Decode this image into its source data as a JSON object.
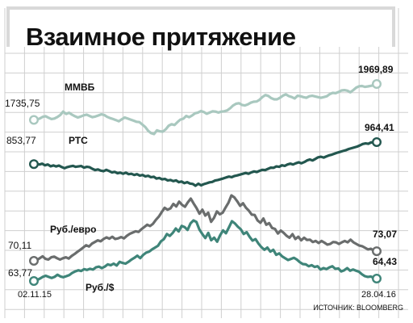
{
  "chart_data": {
    "type": "line",
    "title": "Взаимное притяжение",
    "source": "ИСТОЧНИК: BLOOMBERG",
    "x_start": "02.11.15",
    "x_end": "28.04.16",
    "grid": true,
    "series": [
      {
        "name": "ММВБ",
        "color": "#a9c8bf",
        "start_value": "1735,75",
        "end_value": "1969,89",
        "values": [
          1735.75,
          1738,
          1745,
          1756,
          1760,
          1750,
          1742,
          1745,
          1755,
          1768,
          1790,
          1775,
          1783,
          1770,
          1760,
          1752,
          1758,
          1766,
          1770,
          1762,
          1754,
          1758,
          1765,
          1772,
          1768,
          1756,
          1748,
          1742,
          1735,
          1727,
          1740,
          1752,
          1745,
          1738,
          1731,
          1724,
          1722,
          1706,
          1690,
          1665,
          1650,
          1644,
          1668,
          1662,
          1660,
          1675,
          1698,
          1708,
          1703,
          1722,
          1738,
          1744,
          1762,
          1754,
          1765,
          1779,
          1784,
          1794,
          1787,
          1776,
          1784,
          1792,
          1790,
          1784,
          1790,
          1792,
          1798,
          1812,
          1830,
          1841,
          1845,
          1834,
          1830,
          1837,
          1848,
          1854,
          1856,
          1867,
          1885,
          1898,
          1892,
          1878,
          1870,
          1870,
          1880,
          1894,
          1902,
          1891,
          1885,
          1876,
          1893,
          1890,
          1884,
          1880,
          1890,
          1893,
          1889,
          1884,
          1880,
          1885,
          1890,
          1904,
          1912,
          1910,
          1918,
          1928,
          1930,
          1926,
          1916,
          1930,
          1946,
          1955,
          1957,
          1951,
          1954,
          1958,
          1962,
          1969.89
        ]
      },
      {
        "name": "РТС",
        "color": "#23574f",
        "start_value": "853,77",
        "end_value": "964,41",
        "values": [
          853.77,
          855,
          852,
          856,
          848,
          852,
          843,
          847,
          842,
          846,
          839,
          833,
          839,
          842,
          845,
          840,
          842,
          844,
          836,
          840,
          838,
          830,
          824,
          827,
          821,
          818,
          825,
          819,
          812,
          815,
          808,
          811,
          805,
          811,
          803,
          805,
          799,
          803,
          796,
          799,
          792,
          795,
          788,
          790,
          781,
          784,
          777,
          779,
          772,
          774,
          768,
          772,
          763,
          766,
          758,
          763,
          756,
          754,
          745,
          755,
          747,
          753,
          757,
          762,
          764,
          771,
          774,
          778,
          782,
          787,
          791,
          788,
          794,
          797,
          801,
          805,
          809,
          805,
          812,
          817,
          814,
          820,
          825,
          824,
          830,
          836,
          835,
          842,
          840,
          848,
          845,
          852,
          856,
          852,
          858,
          863,
          858,
          864,
          872,
          877,
          872,
          880,
          888,
          891,
          887,
          893,
          898,
          902,
          907,
          912,
          916,
          920,
          924,
          930,
          934,
          938,
          942,
          948,
          955,
          958,
          956,
          963,
          962,
          964.41
        ]
      },
      {
        "name": "Руб./евро",
        "color": "#6a6d6d",
        "start_value": "70,11",
        "end_value": "73,07",
        "values": [
          70.11,
          70.3,
          70.9,
          71.5,
          70.7,
          70.5,
          71.2,
          71.4,
          70.9,
          70.5,
          70.9,
          71.2,
          70.8,
          71.6,
          72.2,
          72.9,
          73.5,
          74.2,
          74.9,
          74.5,
          75.4,
          75.9,
          76.4,
          76.1,
          76.8,
          77.3,
          76.9,
          77.5,
          76.8,
          77.0,
          77.4,
          77.0,
          77.8,
          78.4,
          78.8,
          79.2,
          79.0,
          79.8,
          80.5,
          81.2,
          80.8,
          81.5,
          82.7,
          83.7,
          85.1,
          86.4,
          85.8,
          86.2,
          87.6,
          86.8,
          88.3,
          87.3,
          86.7,
          88.1,
          89.2,
          87.7,
          86.3,
          84.6,
          85.8,
          84.0,
          84.9,
          82.1,
          83.3,
          85.3,
          84.4,
          84.9,
          86.5,
          88.0,
          90.2,
          89.6,
          88.4,
          87.0,
          87.8,
          86.4,
          85.5,
          84.3,
          84.2,
          82.5,
          81.8,
          83.1,
          81.2,
          81.7,
          80.2,
          79.9,
          78.5,
          79.4,
          78.7,
          77.8,
          77.2,
          78.3,
          76.8,
          77.5,
          76.4,
          77.2,
          76.5,
          76.6,
          75.9,
          76.2,
          75.6,
          76.2,
          75.7,
          75.1,
          75.3,
          75.9,
          75.8,
          75.3,
          75.8,
          76.2,
          75.8,
          76.6,
          75.8,
          75.3,
          74.8,
          74.6,
          74.1,
          73.6,
          73.8,
          73.2,
          73.07
        ]
      },
      {
        "name": "Руб./$",
        "color": "#3f8579",
        "start_value": "63,77",
        "end_value": "64,43",
        "values": [
          63.77,
          64.0,
          64.4,
          64.9,
          65.2,
          64.9,
          64.6,
          64.9,
          65.5,
          65.0,
          64.8,
          65.1,
          65.4,
          66.0,
          66.4,
          66.7,
          66.5,
          67.0,
          66.8,
          67.1,
          66.9,
          67.5,
          67.7,
          67.3,
          67.7,
          68.3,
          68.1,
          68.5,
          68.0,
          69.0,
          68.7,
          68.5,
          69.0,
          69.6,
          70.1,
          70.7,
          70.0,
          70.9,
          71.5,
          71.8,
          72.4,
          72.9,
          73.4,
          74.6,
          75.2,
          76.6,
          76.1,
          76.9,
          78.1,
          77.3,
          78.8,
          78.5,
          77.7,
          79.5,
          80.3,
          79.9,
          77.8,
          76.6,
          75.5,
          76.9,
          74.9,
          75.6,
          74.5,
          76.2,
          77.6,
          76.8,
          78.4,
          80.1,
          79.5,
          78.6,
          77.9,
          76.6,
          77.1,
          75.8,
          74.8,
          75.2,
          74.0,
          73.0,
          72.3,
          72.9,
          71.8,
          72.3,
          70.9,
          71.3,
          70.5,
          70.0,
          69.5,
          69.8,
          70.1,
          69.6,
          68.9,
          68.4,
          68.3,
          67.8,
          68.1,
          67.6,
          67.8,
          66.9,
          67.3,
          67.0,
          67.5,
          67.8,
          67.1,
          67.2,
          66.4,
          66.7,
          67.3,
          66.6,
          66.9,
          66.6,
          66.3,
          65.6,
          65.1,
          64.9,
          65.0,
          64.6,
          64.43
        ]
      }
    ]
  }
}
